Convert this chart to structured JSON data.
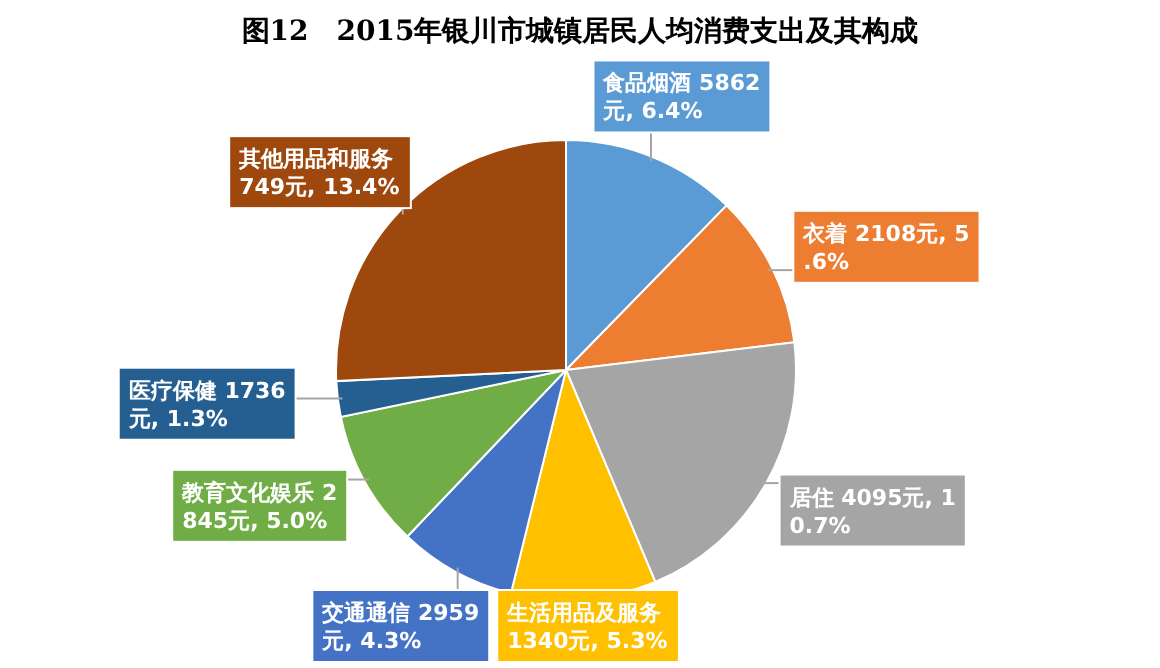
{
  "chart_data": {
    "type": "pie",
    "title": "图12　2015年银川市城镇居民人均消费支出及其构成",
    "categories": [
      "食品烟酒",
      "衣着",
      "居住",
      "生活用品及服务",
      "交通通信",
      "教育文化娱乐",
      "医疗保健",
      "其他用品和服务"
    ],
    "values": [
      6.4,
      5.6,
      10.7,
      5.3,
      4.3,
      5.0,
      1.3,
      13.4
    ],
    "colors": [
      "#5b9bd5",
      "#ed7d31",
      "#a5a5a5",
      "#ffc000",
      "#4472c4",
      "#70ad47",
      "#255e91",
      "#9e480e"
    ],
    "value_labels": [
      "5862元, 6.4%",
      "2108元, 5.6%",
      "4095元, 10.7%",
      "1340元, 5.3%",
      "2959元, 4.3%",
      "2845元, 5.0%",
      "1736元, 1.3%",
      "749元, 13.4%"
    ]
  }
}
